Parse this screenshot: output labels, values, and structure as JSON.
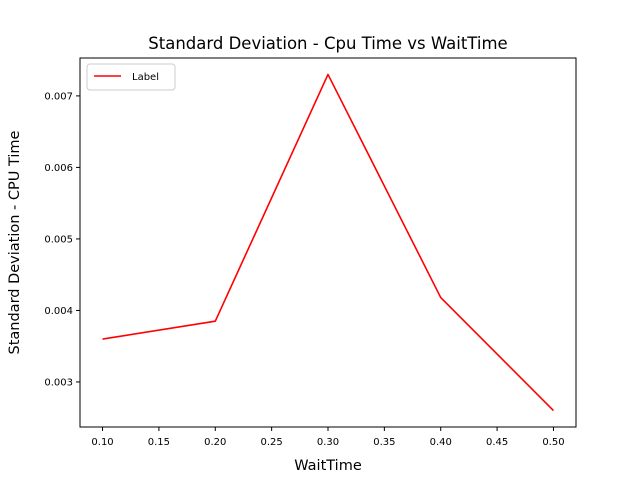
{
  "chart_data": {
    "type": "line",
    "title": "Standard Deviation - Cpu Time vs WaitTime",
    "xlabel": "WaitTime",
    "ylabel": "Standard Deviation - CPU Time",
    "x": [
      0.1,
      0.2,
      0.3,
      0.4,
      0.5
    ],
    "series": [
      {
        "name": "Label",
        "color": "#ff0000",
        "values": [
          0.0036,
          0.00385,
          0.0073,
          0.00418,
          0.0026
        ]
      }
    ],
    "xlim": [
      0.08,
      0.52
    ],
    "ylim": [
      0.00237,
      0.00753
    ],
    "xticks": [
      "0.10",
      "0.15",
      "0.20",
      "0.25",
      "0.30",
      "0.35",
      "0.40",
      "0.45",
      "0.50"
    ],
    "xtick_values": [
      0.1,
      0.15,
      0.2,
      0.25,
      0.3,
      0.35,
      0.4,
      0.45,
      0.5
    ],
    "yticks": [
      "0.003",
      "0.004",
      "0.005",
      "0.006",
      "0.007"
    ],
    "ytick_values": [
      0.003,
      0.004,
      0.005,
      0.006,
      0.007
    ],
    "grid": false,
    "legend_position": "top-left"
  }
}
